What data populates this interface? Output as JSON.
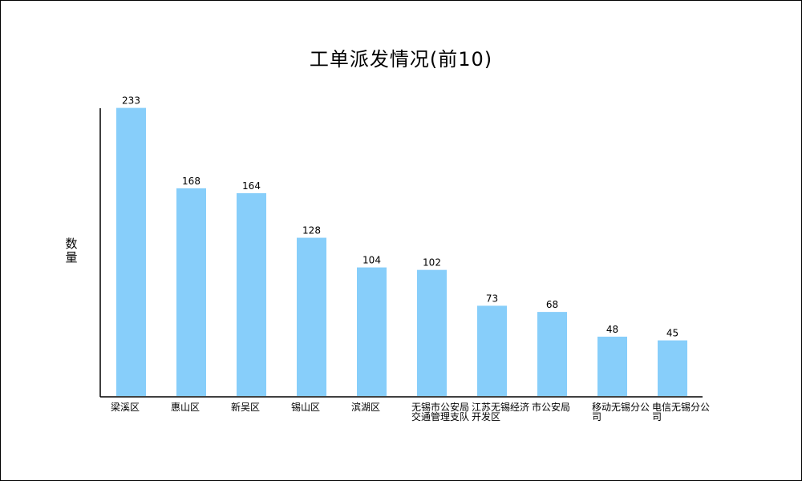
{
  "chart_data": {
    "type": "bar",
    "title": "工单派发情况(前10)",
    "xlabel": "",
    "ylabel": "数量",
    "categories": [
      "梁溪区",
      "惠山区",
      "新吴区",
      "锡山区",
      "滨湖区",
      "无锡市公安局交通管理支队",
      "江苏无锡经济开发区",
      "市公安局",
      "移动无锡分公司",
      "电信无锡分公司"
    ],
    "series": [
      {
        "values": [
          233,
          168,
          164,
          128,
          104,
          102,
          73,
          68,
          48,
          45
        ]
      }
    ],
    "ylim": [
      0,
      240
    ],
    "grid": false,
    "legend": "none",
    "colors": {
      "bar": "#87cefa",
      "axis": "#000000",
      "text": "#000000"
    }
  }
}
